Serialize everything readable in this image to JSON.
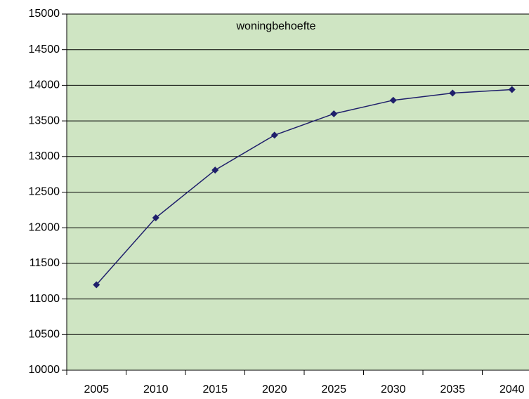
{
  "chart_data": {
    "type": "line",
    "title": "woningbehoefte",
    "categories": [
      "2005",
      "2010",
      "2015",
      "2020",
      "2025",
      "2030",
      "2035",
      "2040"
    ],
    "series": [
      {
        "name": "woningbehoefte",
        "color": "#1f1f6b",
        "values": [
          11200,
          12140,
          12810,
          13300,
          13600,
          13790,
          13890,
          13940
        ]
      }
    ],
    "ylim": [
      10000,
      15000
    ],
    "yticks": [
      10000,
      10500,
      11000,
      11500,
      12000,
      12500,
      13000,
      13500,
      14000,
      14500,
      15000
    ],
    "grid": true,
    "plot_background": "#cfe5c3"
  }
}
